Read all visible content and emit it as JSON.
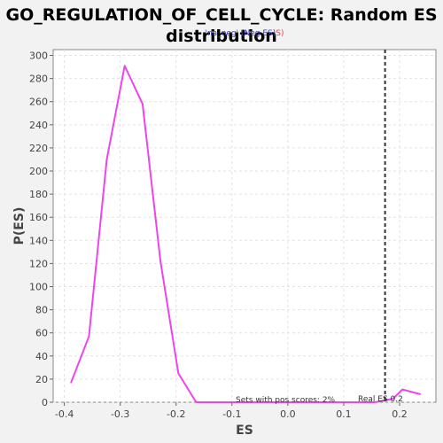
{
  "chart_data": {
    "type": "line",
    "title_line1": "GO_REGULATION_OF_CELL_CYCLE: Random ES",
    "title_line2": "distribution",
    "xlabel": "ES",
    "ylabel": "P(ES)",
    "xlim": [
      -0.42,
      0.265
    ],
    "ylim": [
      0,
      305
    ],
    "x_ticks": [
      -0.4,
      -0.3,
      -0.2,
      -0.1,
      0.0,
      0.1,
      0.2
    ],
    "x_tick_labels": [
      "-0.4",
      "-0.3",
      "-0.2",
      "-0.1",
      "0.0",
      "0.1",
      "0.2"
    ],
    "y_ticks": [
      0,
      20,
      40,
      60,
      80,
      100,
      120,
      140,
      160,
      180,
      200,
      220,
      240,
      260,
      280,
      300
    ],
    "y_tick_labels": [
      "0",
      "20",
      "40",
      "60",
      "80",
      "100",
      "120",
      "140",
      "160",
      "180",
      "200",
      "220",
      "240",
      "260",
      "280",
      "300"
    ],
    "grid": true,
    "series": [
      {
        "color": "#ee44ee",
        "x": [
          -0.388,
          -0.356,
          -0.324,
          -0.292,
          -0.26,
          -0.228,
          -0.196,
          -0.164,
          -0.132,
          -0.1,
          -0.068,
          -0.036,
          -0.004,
          0.028,
          0.06,
          0.092,
          0.124,
          0.156,
          0.188,
          0.205,
          0.237
        ],
        "y": [
          17,
          57,
          210,
          291,
          258,
          122,
          25,
          0,
          0,
          0,
          0,
          0,
          0,
          0,
          0,
          0,
          0,
          0,
          3,
          11,
          7
        ]
      }
    ],
    "real_es": 0.174,
    "real_es_color": "#333333",
    "legend": {
      "prefix": "'na_neg' (",
      "middle": "Neg ES)",
      "suffix": "S)",
      "prefix_color": "#3333cc",
      "middle_color": "#3333cc",
      "suffix_color": "#dd4444"
    },
    "annotation_pos": "Sets with pos scores: 2%",
    "annotation_real": "Real ES 0.2"
  }
}
